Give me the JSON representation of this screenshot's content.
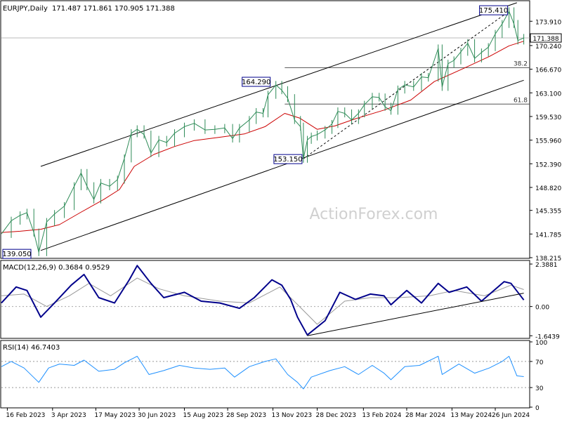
{
  "chart_data": [
    {
      "type": "line",
      "panel": "price",
      "title": "EURJPY,Daily",
      "ohlc": [
        171.487,
        171.861,
        170.905,
        171.388
      ],
      "current_price": 171.388,
      "watermark": "ActionForex.com",
      "ylim": [
        138.22,
        176.8
      ],
      "yticks": [
        "173.910",
        "170.240",
        "166.670",
        "163.100",
        "159.530",
        "155.960",
        "152.390",
        "148.820",
        "145.355",
        "141.785",
        "138.215"
      ],
      "x_labels": [
        "16 Feb 2023",
        "3 Apr 2023",
        "17 May 2023",
        "30 Jun 2023",
        "15 Aug 2023",
        "28 Sep 2023",
        "13 Nov 2023",
        "28 Dec 2023",
        "13 Feb 2024",
        "28 Mar 2024",
        "13 May 2024",
        "26 Jun 2024"
      ],
      "close_path": [
        [
          "2023-02-10",
          141.8
        ],
        [
          "2023-02-20",
          143.8
        ],
        [
          "2023-03-01",
          144.6
        ],
        [
          "2023-03-08",
          145.0
        ],
        [
          "2023-03-15",
          142.0
        ],
        [
          "2023-03-20",
          139.05
        ],
        [
          "2023-03-28",
          143.6
        ],
        [
          "2023-04-05",
          144.8
        ],
        [
          "2023-04-15",
          146.0
        ],
        [
          "2023-04-25",
          149.0
        ],
        [
          "2023-05-02",
          151.0
        ],
        [
          "2023-05-08",
          149.0
        ],
        [
          "2023-05-15",
          147.0
        ],
        [
          "2023-05-22",
          149.5
        ],
        [
          "2023-05-31",
          149.0
        ],
        [
          "2023-06-08",
          150.0
        ],
        [
          "2023-06-15",
          153.2
        ],
        [
          "2023-06-22",
          157.0
        ],
        [
          "2023-06-28",
          157.6
        ],
        [
          "2023-07-05",
          156.8
        ],
        [
          "2023-07-12",
          154.0
        ],
        [
          "2023-07-20",
          156.0
        ],
        [
          "2023-07-28",
          155.6
        ],
        [
          "2023-08-05",
          157.0
        ],
        [
          "2023-08-15",
          158.0
        ],
        [
          "2023-08-25",
          158.5
        ],
        [
          "2023-09-05",
          157.5
        ],
        [
          "2023-09-15",
          157.6
        ],
        [
          "2023-09-25",
          157.8
        ],
        [
          "2023-10-03",
          156.2
        ],
        [
          "2023-10-10",
          157.8
        ],
        [
          "2023-10-20",
          159.0
        ],
        [
          "2023-10-27",
          160.2
        ],
        [
          "2023-11-03",
          160.0
        ],
        [
          "2023-11-08",
          162.8
        ],
        [
          "2023-11-16",
          164.29
        ],
        [
          "2023-11-22",
          163.5
        ],
        [
          "2023-11-28",
          162.3
        ],
        [
          "2023-12-05",
          159.0
        ],
        [
          "2023-12-11",
          158.0
        ],
        [
          "2023-12-14",
          153.15
        ],
        [
          "2023-12-18",
          156.0
        ],
        [
          "2023-12-22",
          156.5
        ],
        [
          "2023-12-28",
          156.8
        ],
        [
          "2024-01-05",
          157.5
        ],
        [
          "2024-01-12",
          158.4
        ],
        [
          "2024-01-18",
          160.3
        ],
        [
          "2024-01-25",
          160.0
        ],
        [
          "2024-02-01",
          159.0
        ],
        [
          "2024-02-08",
          160.0
        ],
        [
          "2024-02-14",
          161.3
        ],
        [
          "2024-02-22",
          162.5
        ],
        [
          "2024-02-29",
          162.4
        ],
        [
          "2024-03-06",
          161.0
        ],
        [
          "2024-03-12",
          160.4
        ],
        [
          "2024-03-19",
          163.6
        ],
        [
          "2024-03-26",
          164.3
        ],
        [
          "2024-04-04",
          164.0
        ],
        [
          "2024-04-12",
          165.5
        ],
        [
          "2024-04-19",
          165.4
        ],
        [
          "2024-04-29",
          169.8
        ],
        [
          "2024-05-03",
          164.0
        ],
        [
          "2024-05-09",
          167.5
        ],
        [
          "2024-05-15",
          168.0
        ],
        [
          "2024-05-22",
          169.3
        ],
        [
          "2024-05-29",
          170.6
        ],
        [
          "2024-06-05",
          168.3
        ],
        [
          "2024-06-12",
          169.2
        ],
        [
          "2024-06-19",
          170.0
        ],
        [
          "2024-06-26",
          172.0
        ],
        [
          "2024-07-03",
          173.5
        ],
        [
          "2024-07-10",
          175.41
        ],
        [
          "2024-07-15",
          173.5
        ],
        [
          "2024-07-19",
          171.0
        ],
        [
          "2024-07-25",
          171.388
        ]
      ],
      "sma_path": [
        [
          "2023-02-10",
          142.0
        ],
        [
          "2023-03-01",
          142.2
        ],
        [
          "2023-03-22",
          142.5
        ],
        [
          "2023-04-10",
          143.2
        ],
        [
          "2023-05-01",
          145.0
        ],
        [
          "2023-05-25",
          147.0
        ],
        [
          "2023-06-10",
          148.5
        ],
        [
          "2023-06-25",
          152.0
        ],
        [
          "2023-07-15",
          153.8
        ],
        [
          "2023-08-05",
          155.0
        ],
        [
          "2023-08-25",
          155.9
        ],
        [
          "2023-09-20",
          156.4
        ],
        [
          "2023-10-15",
          156.9
        ],
        [
          "2023-11-05",
          158.0
        ],
        [
          "2023-11-25",
          160.0
        ],
        [
          "2023-12-10",
          159.3
        ],
        [
          "2023-12-28",
          157.6
        ],
        [
          "2024-01-15",
          158.1
        ],
        [
          "2024-02-05",
          159.2
        ],
        [
          "2024-03-05",
          160.5
        ],
        [
          "2024-04-01",
          162.0
        ],
        [
          "2024-04-25",
          164.8
        ],
        [
          "2024-05-25",
          166.8
        ],
        [
          "2024-06-20",
          168.6
        ],
        [
          "2024-07-10",
          170.2
        ],
        [
          "2024-07-25",
          170.9
        ]
      ],
      "channel_upper": [
        [
          "2023-03-22",
          152.0
        ],
        [
          "2024-07-18",
          176.7
        ]
      ],
      "channel_lower": [
        [
          "2023-03-22",
          139.3
        ],
        [
          "2024-07-25",
          165.0
        ]
      ],
      "fib_swing": [
        [
          "2023-12-14",
          153.15
        ],
        [
          "2024-07-10",
          175.41
        ]
      ],
      "fib_levels": [
        {
          "label": "38.2",
          "value": 166.9,
          "from": "2023-11-25"
        },
        {
          "label": "61.8",
          "value": 161.4,
          "from": "2023-11-25"
        }
      ],
      "annotations": [
        {
          "text": "139.050",
          "date": "2023-03-20",
          "value": 139.05
        },
        {
          "text": "164.290",
          "date": "2023-11-16",
          "value": 164.29
        },
        {
          "text": "153.150",
          "date": "2023-12-14",
          "value": 153.15
        },
        {
          "text": "175.410",
          "date": "2024-07-10",
          "value": 175.41
        }
      ],
      "colors": {
        "close": "#2e8b57",
        "sma": "#cc0000",
        "channel": "#000000",
        "fib": "#555555",
        "ref_line": "#bbbbbb"
      }
    },
    {
      "type": "line",
      "panel": "macd",
      "title": "MACD(12,26,9) 0.3684 0.9529",
      "yticks": [
        "2.3881",
        "0.00",
        "-1.6439"
      ],
      "ylim": [
        -1.75,
        2.55
      ],
      "macd_path": [
        [
          "2023-02-10",
          0.2
        ],
        [
          "2023-02-25",
          1.1
        ],
        [
          "2023-03-08",
          0.9
        ],
        [
          "2023-03-22",
          -0.6
        ],
        [
          "2023-04-05",
          0.2
        ],
        [
          "2023-04-22",
          1.2
        ],
        [
          "2023-05-05",
          1.8
        ],
        [
          "2023-05-20",
          0.5
        ],
        [
          "2023-06-05",
          0.2
        ],
        [
          "2023-06-20",
          1.5
        ],
        [
          "2023-06-28",
          2.3
        ],
        [
          "2023-07-12",
          1.3
        ],
        [
          "2023-07-25",
          0.5
        ],
        [
          "2023-08-15",
          0.8
        ],
        [
          "2023-09-01",
          0.3
        ],
        [
          "2023-09-20",
          0.2
        ],
        [
          "2023-10-10",
          -0.1
        ],
        [
          "2023-10-25",
          0.5
        ],
        [
          "2023-11-12",
          1.5
        ],
        [
          "2023-11-22",
          1.2
        ],
        [
          "2023-12-01",
          0.4
        ],
        [
          "2023-12-08",
          -0.6
        ],
        [
          "2023-12-18",
          -1.6
        ],
        [
          "2024-01-05",
          -0.8
        ],
        [
          "2024-01-20",
          0.8
        ],
        [
          "2024-02-05",
          0.4
        ],
        [
          "2024-02-20",
          0.7
        ],
        [
          "2024-03-05",
          0.6
        ],
        [
          "2024-03-12",
          0.1
        ],
        [
          "2024-03-28",
          0.9
        ],
        [
          "2024-04-12",
          0.2
        ],
        [
          "2024-04-29",
          1.3
        ],
        [
          "2024-05-10",
          0.8
        ],
        [
          "2024-05-28",
          1.1
        ],
        [
          "2024-06-12",
          0.3
        ],
        [
          "2024-07-05",
          1.4
        ],
        [
          "2024-07-12",
          1.3
        ],
        [
          "2024-07-25",
          0.3684
        ]
      ],
      "signal_path": [
        [
          "2023-02-10",
          0.6
        ],
        [
          "2023-03-05",
          0.7
        ],
        [
          "2023-03-28",
          0.0
        ],
        [
          "2023-04-20",
          0.6
        ],
        [
          "2023-05-10",
          1.3
        ],
        [
          "2023-06-01",
          0.6
        ],
        [
          "2023-06-28",
          1.6
        ],
        [
          "2023-07-20",
          1.0
        ],
        [
          "2023-08-15",
          0.6
        ],
        [
          "2023-09-20",
          0.3
        ],
        [
          "2023-10-20",
          0.2
        ],
        [
          "2023-11-20",
          1.1
        ],
        [
          "2023-12-10",
          0.0
        ],
        [
          "2023-12-28",
          -1.0
        ],
        [
          "2024-01-25",
          0.3
        ],
        [
          "2024-02-20",
          0.5
        ],
        [
          "2024-03-20",
          0.5
        ],
        [
          "2024-04-20",
          0.6
        ],
        [
          "2024-05-15",
          0.9
        ],
        [
          "2024-06-15",
          0.6
        ],
        [
          "2024-07-12",
          1.2
        ],
        [
          "2024-07-25",
          0.9529
        ]
      ],
      "trend_line": [
        [
          "2023-12-18",
          -1.64
        ],
        [
          "2024-07-25",
          0.75
        ]
      ],
      "colors": {
        "macd": "#00008b",
        "signal": "#999999",
        "trend": "#000000",
        "zero": "#aaaaaa"
      }
    },
    {
      "type": "line",
      "panel": "rsi",
      "title": "RSI(14) 46.7403",
      "yticks": [
        "100",
        "70",
        "30",
        "0"
      ],
      "ylim": [
        0,
        100
      ],
      "reference_levels": [
        70,
        30
      ],
      "rsi_path": [
        [
          "2023-02-10",
          62
        ],
        [
          "2023-02-20",
          70
        ],
        [
          "2023-03-05",
          60
        ],
        [
          "2023-03-20",
          38
        ],
        [
          "2023-03-30",
          60
        ],
        [
          "2023-04-10",
          66
        ],
        [
          "2023-04-25",
          64
        ],
        [
          "2023-05-05",
          72
        ],
        [
          "2023-05-20",
          55
        ],
        [
          "2023-06-05",
          58
        ],
        [
          "2023-06-15",
          68
        ],
        [
          "2023-06-28",
          78
        ],
        [
          "2023-07-10",
          50
        ],
        [
          "2023-07-25",
          56
        ],
        [
          "2023-08-10",
          64
        ],
        [
          "2023-08-25",
          60
        ],
        [
          "2023-09-10",
          58
        ],
        [
          "2023-09-25",
          60
        ],
        [
          "2023-10-05",
          46
        ],
        [
          "2023-10-20",
          62
        ],
        [
          "2023-11-05",
          70
        ],
        [
          "2023-11-16",
          74
        ],
        [
          "2023-11-28",
          50
        ],
        [
          "2023-12-08",
          38
        ],
        [
          "2023-12-14",
          28
        ],
        [
          "2023-12-22",
          46
        ],
        [
          "2024-01-10",
          56
        ],
        [
          "2024-01-25",
          62
        ],
        [
          "2024-02-08",
          50
        ],
        [
          "2024-02-22",
          64
        ],
        [
          "2024-03-05",
          52
        ],
        [
          "2024-03-12",
          42
        ],
        [
          "2024-03-26",
          62
        ],
        [
          "2024-04-10",
          64
        ],
        [
          "2024-04-29",
          78
        ],
        [
          "2024-05-03",
          50
        ],
        [
          "2024-05-20",
          66
        ],
        [
          "2024-06-05",
          52
        ],
        [
          "2024-06-20",
          60
        ],
        [
          "2024-07-03",
          70
        ],
        [
          "2024-07-10",
          78
        ],
        [
          "2024-07-18",
          48
        ],
        [
          "2024-07-25",
          46.74
        ]
      ],
      "colors": {
        "rsi": "#1e90ff",
        "levels": "#999999"
      }
    }
  ]
}
